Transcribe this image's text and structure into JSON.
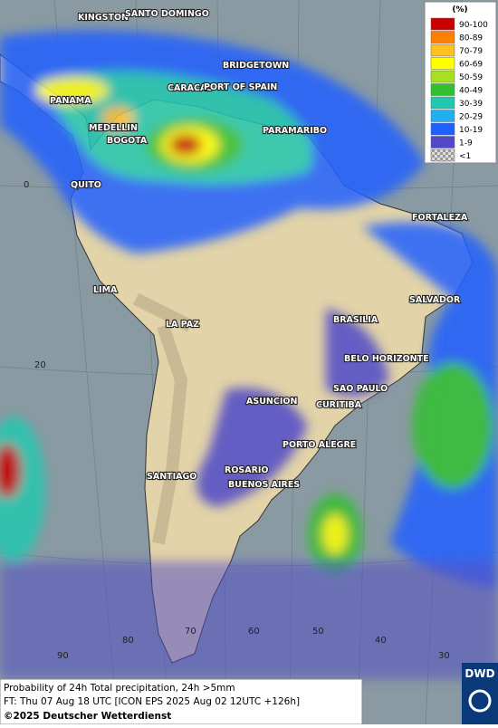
{
  "legend": {
    "title": "(%)",
    "items": [
      {
        "label": "90-100",
        "color": "#c80000"
      },
      {
        "label": "80-89",
        "color": "#ff8000"
      },
      {
        "label": "70-79",
        "color": "#ffc020"
      },
      {
        "label": "60-69",
        "color": "#ffff00"
      },
      {
        "label": "50-59",
        "color": "#a8e020"
      },
      {
        "label": "40-49",
        "color": "#30c030"
      },
      {
        "label": "30-39",
        "color": "#20c8b0"
      },
      {
        "label": "20-29",
        "color": "#20b0f0"
      },
      {
        "label": "10-19",
        "color": "#2060ff"
      },
      {
        "label": "1-9",
        "color": "#5048c8"
      },
      {
        "label": "<1",
        "color": "#b0b0b0"
      }
    ]
  },
  "cities": [
    "KINGSTON",
    "SANTO DOMINGO",
    "BRIDGETOWN",
    "CARACAS",
    "PORT OF SPAIN",
    "PANAMA",
    "MEDELLIN",
    "PARAMARIBO",
    "BOGOTA",
    "QUITO",
    "FORTALEZA",
    "LIMA",
    "SALVADOR",
    "LA PAZ",
    "BRASILIA",
    "BELO HORIZONTE",
    "SAO PAULO",
    "ASUNCION",
    "CURITIBA",
    "PORTO ALEGRE",
    "ROSARIO",
    "SANTIAGO",
    "BUENOS AIRES"
  ],
  "grid_labels": [
    "0",
    "20",
    "90",
    "80",
    "70",
    "60",
    "50",
    "40",
    "30"
  ],
  "caption": {
    "line1": "Probability of 24h Total precipitation, 24h >5mm",
    "line2": "FT: Thu 07 Aug 18 UTC [ICON EPS 2025 Aug 02 12UTC +126h]",
    "line3": "©2025 Deutscher Wetterdienst"
  },
  "logo": "DWD"
}
